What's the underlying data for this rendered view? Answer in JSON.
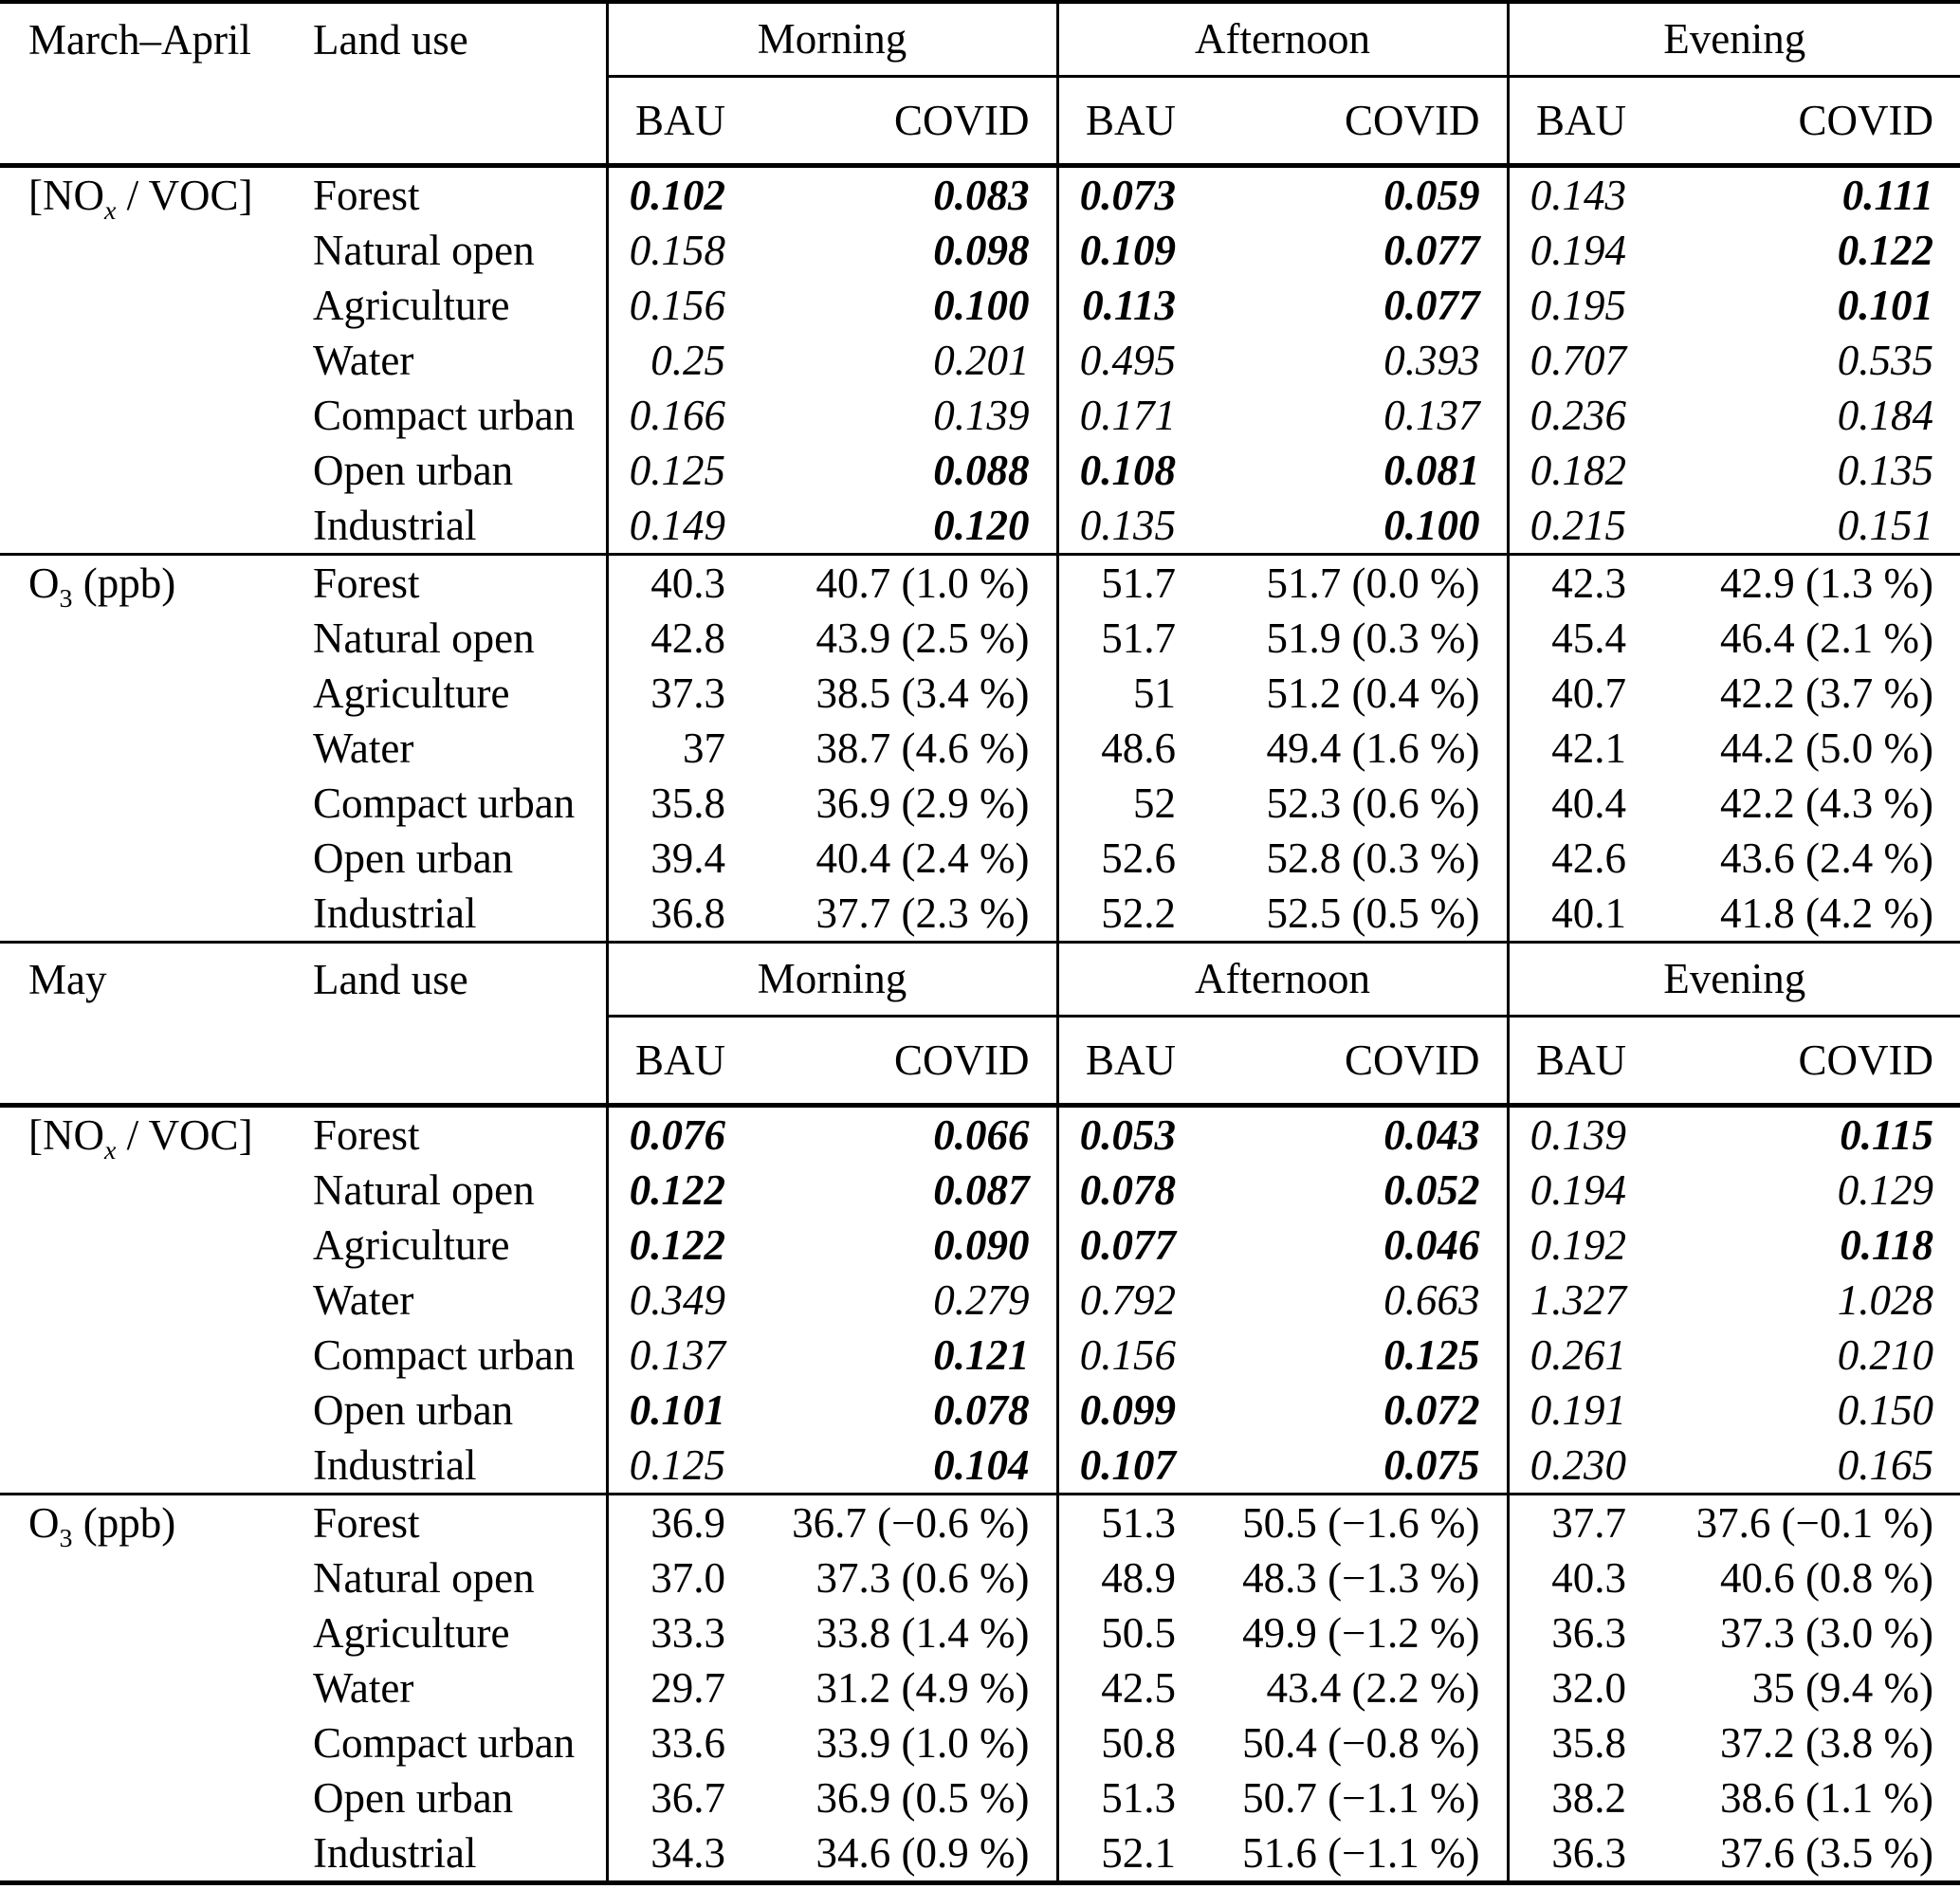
{
  "page": {
    "background": "#ffffff",
    "text_color": "#000000",
    "rule_color": "#000000"
  },
  "table": {
    "land_use_header": "Land use",
    "period_headers": [
      "Morning",
      "Afternoon",
      "Evening"
    ],
    "scenario_headers": [
      "BAU",
      "COVID"
    ],
    "sections": [
      {
        "month_label": "March–April",
        "blocks": [
          {
            "metric": {
              "pre": "[NO",
              "sub": "x",
              "post": " / VOC]",
              "sub_italic": true
            },
            "value_style": "italic",
            "rows": [
              {
                "land_use": "Forest",
                "cells": [
                  {
                    "v": "0.102",
                    "b": true
                  },
                  {
                    "v": "0.083",
                    "b": true
                  },
                  {
                    "v": "0.073",
                    "b": true
                  },
                  {
                    "v": "0.059",
                    "b": true
                  },
                  {
                    "v": "0.143"
                  },
                  {
                    "v": "0.111",
                    "b": true
                  }
                ]
              },
              {
                "land_use": "Natural open",
                "cells": [
                  {
                    "v": "0.158"
                  },
                  {
                    "v": "0.098",
                    "b": true
                  },
                  {
                    "v": "0.109",
                    "b": true
                  },
                  {
                    "v": "0.077",
                    "b": true
                  },
                  {
                    "v": "0.194"
                  },
                  {
                    "v": "0.122",
                    "b": true
                  }
                ]
              },
              {
                "land_use": "Agriculture",
                "cells": [
                  {
                    "v": "0.156"
                  },
                  {
                    "v": "0.100",
                    "b": true
                  },
                  {
                    "v": "0.113",
                    "b": true
                  },
                  {
                    "v": "0.077",
                    "b": true
                  },
                  {
                    "v": "0.195"
                  },
                  {
                    "v": "0.101",
                    "b": true
                  }
                ]
              },
              {
                "land_use": "Water",
                "cells": [
                  {
                    "v": "0.25"
                  },
                  {
                    "v": "0.201"
                  },
                  {
                    "v": "0.495"
                  },
                  {
                    "v": "0.393"
                  },
                  {
                    "v": "0.707"
                  },
                  {
                    "v": "0.535"
                  }
                ]
              },
              {
                "land_use": "Compact urban",
                "cells": [
                  {
                    "v": "0.166"
                  },
                  {
                    "v": "0.139"
                  },
                  {
                    "v": "0.171"
                  },
                  {
                    "v": "0.137"
                  },
                  {
                    "v": "0.236"
                  },
                  {
                    "v": "0.184"
                  }
                ]
              },
              {
                "land_use": "Open urban",
                "cells": [
                  {
                    "v": "0.125"
                  },
                  {
                    "v": "0.088",
                    "b": true
                  },
                  {
                    "v": "0.108",
                    "b": true
                  },
                  {
                    "v": "0.081",
                    "b": true
                  },
                  {
                    "v": "0.182"
                  },
                  {
                    "v": "0.135"
                  }
                ]
              },
              {
                "land_use": "Industrial",
                "cells": [
                  {
                    "v": "0.149"
                  },
                  {
                    "v": "0.120",
                    "b": true
                  },
                  {
                    "v": "0.135"
                  },
                  {
                    "v": "0.100",
                    "b": true
                  },
                  {
                    "v": "0.215"
                  },
                  {
                    "v": "0.151"
                  }
                ]
              }
            ]
          },
          {
            "metric": {
              "pre": "O",
              "sub": "3",
              "post": " (ppb)",
              "sub_italic": false
            },
            "value_style": "roman",
            "rows": [
              {
                "land_use": "Forest",
                "cells": [
                  {
                    "v": "40.3"
                  },
                  {
                    "v": "40.7 (1.0 %)"
                  },
                  {
                    "v": "51.7"
                  },
                  {
                    "v": "51.7 (0.0 %)"
                  },
                  {
                    "v": "42.3"
                  },
                  {
                    "v": "42.9 (1.3 %)"
                  }
                ]
              },
              {
                "land_use": "Natural open",
                "cells": [
                  {
                    "v": "42.8"
                  },
                  {
                    "v": "43.9 (2.5 %)"
                  },
                  {
                    "v": "51.7"
                  },
                  {
                    "v": "51.9 (0.3 %)"
                  },
                  {
                    "v": "45.4"
                  },
                  {
                    "v": "46.4 (2.1 %)"
                  }
                ]
              },
              {
                "land_use": "Agriculture",
                "cells": [
                  {
                    "v": "37.3"
                  },
                  {
                    "v": "38.5 (3.4 %)"
                  },
                  {
                    "v": "51"
                  },
                  {
                    "v": "51.2 (0.4 %)"
                  },
                  {
                    "v": "40.7"
                  },
                  {
                    "v": "42.2 (3.7 %)"
                  }
                ]
              },
              {
                "land_use": "Water",
                "cells": [
                  {
                    "v": "37"
                  },
                  {
                    "v": "38.7 (4.6 %)"
                  },
                  {
                    "v": "48.6"
                  },
                  {
                    "v": "49.4 (1.6 %)"
                  },
                  {
                    "v": "42.1"
                  },
                  {
                    "v": "44.2 (5.0 %)"
                  }
                ]
              },
              {
                "land_use": "Compact urban",
                "cells": [
                  {
                    "v": "35.8"
                  },
                  {
                    "v": "36.9 (2.9 %)"
                  },
                  {
                    "v": "52"
                  },
                  {
                    "v": "52.3 (0.6 %)"
                  },
                  {
                    "v": "40.4"
                  },
                  {
                    "v": "42.2 (4.3 %)"
                  }
                ]
              },
              {
                "land_use": "Open urban",
                "cells": [
                  {
                    "v": "39.4"
                  },
                  {
                    "v": "40.4 (2.4 %)"
                  },
                  {
                    "v": "52.6"
                  },
                  {
                    "v": "52.8 (0.3 %)"
                  },
                  {
                    "v": "42.6"
                  },
                  {
                    "v": "43.6 (2.4 %)"
                  }
                ]
              },
              {
                "land_use": "Industrial",
                "cells": [
                  {
                    "v": "36.8"
                  },
                  {
                    "v": "37.7 (2.3 %)"
                  },
                  {
                    "v": "52.2"
                  },
                  {
                    "v": "52.5 (0.5 %)"
                  },
                  {
                    "v": "40.1"
                  },
                  {
                    "v": "41.8 (4.2 %)"
                  }
                ]
              }
            ]
          }
        ]
      },
      {
        "month_label": "May",
        "blocks": [
          {
            "metric": {
              "pre": "[NO",
              "sub": "x",
              "post": " / VOC]",
              "sub_italic": true
            },
            "value_style": "italic",
            "rows": [
              {
                "land_use": "Forest",
                "cells": [
                  {
                    "v": "0.076",
                    "b": true
                  },
                  {
                    "v": "0.066",
                    "b": true
                  },
                  {
                    "v": "0.053",
                    "b": true
                  },
                  {
                    "v": "0.043",
                    "b": true
                  },
                  {
                    "v": "0.139"
                  },
                  {
                    "v": "0.115",
                    "b": true
                  }
                ]
              },
              {
                "land_use": "Natural open",
                "cells": [
                  {
                    "v": "0.122",
                    "b": true
                  },
                  {
                    "v": "0.087",
                    "b": true
                  },
                  {
                    "v": "0.078",
                    "b": true
                  },
                  {
                    "v": "0.052",
                    "b": true
                  },
                  {
                    "v": "0.194"
                  },
                  {
                    "v": "0.129"
                  }
                ]
              },
              {
                "land_use": "Agriculture",
                "cells": [
                  {
                    "v": "0.122",
                    "b": true
                  },
                  {
                    "v": "0.090",
                    "b": true
                  },
                  {
                    "v": "0.077",
                    "b": true
                  },
                  {
                    "v": "0.046",
                    "b": true
                  },
                  {
                    "v": "0.192"
                  },
                  {
                    "v": "0.118",
                    "b": true
                  }
                ]
              },
              {
                "land_use": "Water",
                "cells": [
                  {
                    "v": "0.349"
                  },
                  {
                    "v": "0.279"
                  },
                  {
                    "v": "0.792"
                  },
                  {
                    "v": "0.663"
                  },
                  {
                    "v": "1.327"
                  },
                  {
                    "v": "1.028"
                  }
                ]
              },
              {
                "land_use": "Compact urban",
                "cells": [
                  {
                    "v": "0.137"
                  },
                  {
                    "v": "0.121",
                    "b": true
                  },
                  {
                    "v": "0.156"
                  },
                  {
                    "v": "0.125",
                    "b": true
                  },
                  {
                    "v": "0.261"
                  },
                  {
                    "v": "0.210"
                  }
                ]
              },
              {
                "land_use": "Open urban",
                "cells": [
                  {
                    "v": "0.101",
                    "b": true
                  },
                  {
                    "v": "0.078",
                    "b": true
                  },
                  {
                    "v": "0.099",
                    "b": true
                  },
                  {
                    "v": "0.072",
                    "b": true
                  },
                  {
                    "v": "0.191"
                  },
                  {
                    "v": "0.150"
                  }
                ]
              },
              {
                "land_use": "Industrial",
                "cells": [
                  {
                    "v": "0.125"
                  },
                  {
                    "v": "0.104",
                    "b": true
                  },
                  {
                    "v": "0.107",
                    "b": true
                  },
                  {
                    "v": "0.075",
                    "b": true
                  },
                  {
                    "v": "0.230"
                  },
                  {
                    "v": "0.165"
                  }
                ]
              }
            ]
          },
          {
            "metric": {
              "pre": "O",
              "sub": "3",
              "post": " (ppb)",
              "sub_italic": false
            },
            "value_style": "roman",
            "rows": [
              {
                "land_use": "Forest",
                "cells": [
                  {
                    "v": "36.9"
                  },
                  {
                    "v": "36.7 (−0.6 %)"
                  },
                  {
                    "v": "51.3"
                  },
                  {
                    "v": "50.5 (−1.6 %)"
                  },
                  {
                    "v": "37.7"
                  },
                  {
                    "v": "37.6 (−0.1 %)"
                  }
                ]
              },
              {
                "land_use": "Natural open",
                "cells": [
                  {
                    "v": "37.0"
                  },
                  {
                    "v": "37.3 (0.6 %)"
                  },
                  {
                    "v": "48.9"
                  },
                  {
                    "v": "48.3 (−1.3 %)"
                  },
                  {
                    "v": "40.3"
                  },
                  {
                    "v": "40.6 (0.8 %)"
                  }
                ]
              },
              {
                "land_use": "Agriculture",
                "cells": [
                  {
                    "v": "33.3"
                  },
                  {
                    "v": "33.8 (1.4 %)"
                  },
                  {
                    "v": "50.5"
                  },
                  {
                    "v": "49.9 (−1.2 %)"
                  },
                  {
                    "v": "36.3"
                  },
                  {
                    "v": "37.3 (3.0 %)"
                  }
                ]
              },
              {
                "land_use": "Water",
                "cells": [
                  {
                    "v": "29.7"
                  },
                  {
                    "v": "31.2 (4.9 %)"
                  },
                  {
                    "v": "42.5"
                  },
                  {
                    "v": "43.4 (2.2 %)"
                  },
                  {
                    "v": "32.0"
                  },
                  {
                    "v": "35 (9.4 %)"
                  }
                ]
              },
              {
                "land_use": "Compact urban",
                "cells": [
                  {
                    "v": "33.6"
                  },
                  {
                    "v": "33.9 (1.0 %)"
                  },
                  {
                    "v": "50.8"
                  },
                  {
                    "v": "50.4 (−0.8 %)"
                  },
                  {
                    "v": "35.8"
                  },
                  {
                    "v": "37.2 (3.8 %)"
                  }
                ]
              },
              {
                "land_use": "Open urban",
                "cells": [
                  {
                    "v": "36.7"
                  },
                  {
                    "v": "36.9 (0.5 %)"
                  },
                  {
                    "v": "51.3"
                  },
                  {
                    "v": "50.7 (−1.1 %)"
                  },
                  {
                    "v": "38.2"
                  },
                  {
                    "v": "38.6 (1.1 %)"
                  }
                ]
              },
              {
                "land_use": "Industrial",
                "cells": [
                  {
                    "v": "34.3"
                  },
                  {
                    "v": "34.6 (0.9 %)"
                  },
                  {
                    "v": "52.1"
                  },
                  {
                    "v": "51.6 (−1.1 %)"
                  },
                  {
                    "v": "36.3"
                  },
                  {
                    "v": "37.6 (3.5 %)"
                  }
                ]
              }
            ]
          }
        ]
      }
    ]
  }
}
